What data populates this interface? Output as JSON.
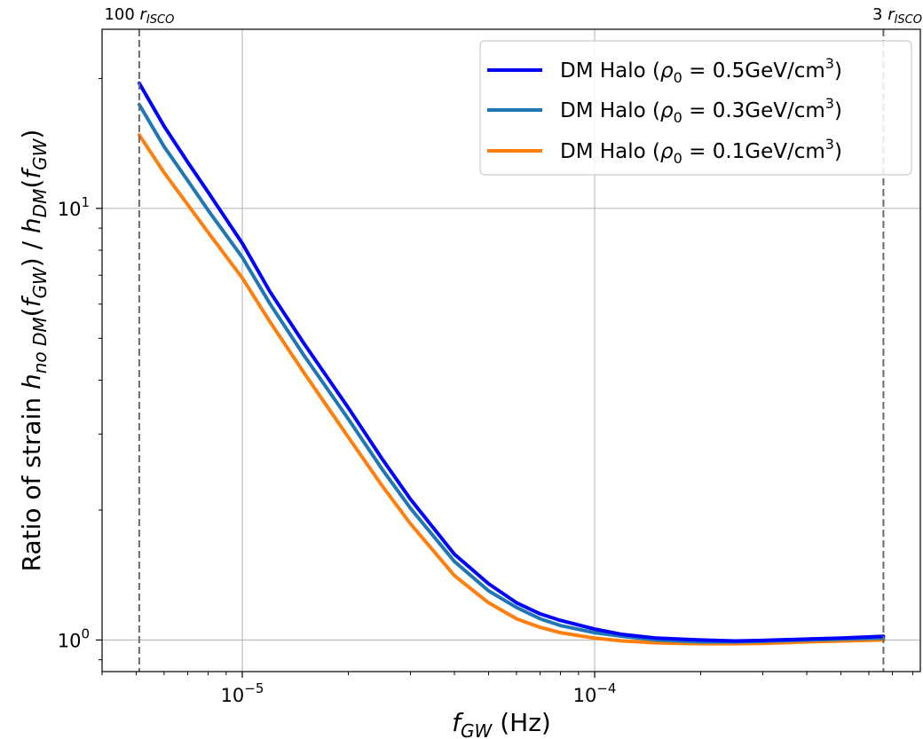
{
  "chart_data": {
    "type": "line",
    "x_scale": "log",
    "y_scale": "log",
    "xlabel_main": "f",
    "xlabel_sub": "GW",
    "xlabel_unit": " (Hz)",
    "ylabel_prefix": "Ratio of strain  ",
    "ylabel_num_h": "h",
    "ylabel_num_sub": "no DM",
    "ylabel_num_arg_f": "f",
    "ylabel_num_arg_sub": "GW",
    "ylabel_sep": " / ",
    "ylabel_den_h": "h",
    "ylabel_den_sub": "DM",
    "ylabel_den_arg_f": "f",
    "ylabel_den_arg_sub": "GW",
    "xlim": [
      4e-06,
      0.00084
    ],
    "ylim": [
      0.845,
      26.0
    ],
    "x_ticks": [
      {
        "value": 1e-05,
        "base": "10",
        "exp": "−5"
      },
      {
        "value": 0.0001,
        "base": "10",
        "exp": "−4"
      }
    ],
    "y_ticks": [
      {
        "value": 1,
        "base": "10",
        "exp": "0"
      },
      {
        "value": 10,
        "base": "10",
        "exp": "1"
      }
    ],
    "grid": true,
    "legend_position": "top-right",
    "vertical_lines": [
      {
        "x": 5.1e-06,
        "label_num": "100 ",
        "label_r": "r",
        "label_sub": "ISCO"
      },
      {
        "x": 0.00066,
        "label_num": "3 ",
        "label_r": "r",
        "label_sub": "ISCO"
      }
    ],
    "series": [
      {
        "name_prefix": "DM Halo (",
        "name_rho": "ρ",
        "name_sub": "0",
        "name_val": " = 0.5GeV/cm",
        "name_sup": "3",
        "name_suffix": ")",
        "color": "#0000ff",
        "x": [
          5.1e-06,
          6e-06,
          7e-06,
          8e-06,
          1e-05,
          1.2e-05,
          1.5e-05,
          2e-05,
          2.5e-05,
          3e-05,
          4e-05,
          5e-05,
          6e-05,
          7e-05,
          8e-05,
          0.0001,
          0.00012,
          0.00015,
          0.0002,
          0.00025,
          0.0003,
          0.0004,
          0.0005,
          0.00066
        ],
        "y": [
          19.5,
          15.5,
          12.8,
          10.9,
          8.3,
          6.4,
          4.85,
          3.45,
          2.62,
          2.12,
          1.58,
          1.35,
          1.22,
          1.15,
          1.11,
          1.06,
          1.03,
          1.01,
          1.0,
          0.995,
          0.998,
          1.005,
          1.01,
          1.02
        ]
      },
      {
        "name_prefix": "DM Halo (",
        "name_rho": "ρ",
        "name_sub": "0",
        "name_val": " = 0.3GeV/cm",
        "name_sup": "3",
        "name_suffix": ")",
        "color": "#1f77b4",
        "x": [
          5.1e-06,
          6e-06,
          7e-06,
          8e-06,
          1e-05,
          1.2e-05,
          1.5e-05,
          2e-05,
          2.5e-05,
          3e-05,
          4e-05,
          5e-05,
          6e-05,
          7e-05,
          8e-05,
          0.0001,
          0.00012,
          0.00015,
          0.0002,
          0.00025,
          0.0003,
          0.0004,
          0.0005,
          0.00066
        ],
        "y": [
          17.4,
          13.9,
          11.6,
          9.9,
          7.7,
          6.0,
          4.55,
          3.25,
          2.48,
          2.02,
          1.52,
          1.3,
          1.19,
          1.12,
          1.08,
          1.04,
          1.02,
          1.0,
          0.99,
          0.99,
          0.993,
          1.0,
          1.005,
          1.01
        ]
      },
      {
        "name_prefix": "DM Halo (",
        "name_rho": "ρ",
        "name_sub": "0",
        "name_val": " = 0.1GeV/cm",
        "name_sup": "3",
        "name_suffix": ")",
        "color": "#ff7f0e",
        "x": [
          5.1e-06,
          6e-06,
          7e-06,
          8e-06,
          1e-05,
          1.2e-05,
          1.5e-05,
          2e-05,
          2.5e-05,
          3e-05,
          4e-05,
          5e-05,
          6e-05,
          7e-05,
          8e-05,
          0.0001,
          0.00012,
          0.00015,
          0.0002,
          0.00025,
          0.0003,
          0.0004,
          0.0005,
          0.00066
        ],
        "y": [
          14.8,
          12.1,
          10.2,
          8.8,
          6.9,
          5.45,
          4.15,
          2.95,
          2.27,
          1.86,
          1.41,
          1.22,
          1.12,
          1.07,
          1.04,
          1.01,
          0.995,
          0.985,
          0.98,
          0.98,
          0.982,
          0.99,
          0.995,
          1.0
        ]
      }
    ]
  }
}
